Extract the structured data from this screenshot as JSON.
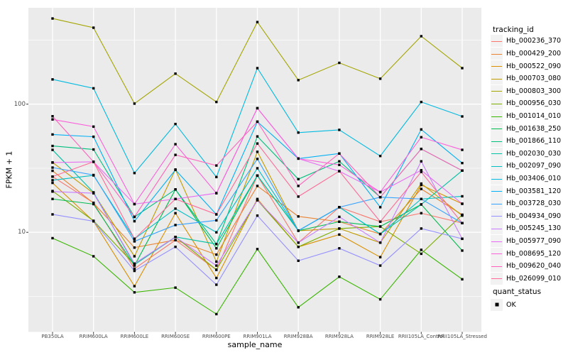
{
  "figure": {
    "y_axis_title": "FPKM + 1",
    "x_axis_title": "sample_name",
    "legend": {
      "tracking_title": "tracking_id",
      "quant_title": "quant_status",
      "quant_label": "OK"
    }
  },
  "chart_data": {
    "type": "line",
    "title": "",
    "xlabel": "sample_name",
    "ylabel": "FPKM + 1",
    "y_scale": "log10",
    "grid": true,
    "legend_position": "right",
    "panel_color": "#EBEBEB",
    "grid_color": "#FFFFFF",
    "point_color": "#000000",
    "point_shape": "square",
    "quant_status": "OK",
    "y_ticks": [
      {
        "label": "100",
        "value": 100
      },
      {
        "label": "10",
        "value": 10
      }
    ],
    "y_minor_values": [
      316.2,
      31.62,
      3.162
    ],
    "ylim_log": [
      1.7,
      570
    ],
    "categories": [
      "PB350LA",
      "RRIM600LA",
      "RRIM600LE",
      "RRIM600SE",
      "RRIM600PE",
      "RRIM901LA",
      "RRIM928BA",
      "RRIM928LA",
      "RRIM928LE",
      "RRII105LA_Control",
      "RRII105LA_Stressed"
    ],
    "series": [
      {
        "name": "Hb_000236_370",
        "color": "#F8766D",
        "values": [
          27.2,
          17.0,
          5.2,
          8.7,
          5.1,
          27.7,
          8.3,
          15.7,
          12.1,
          14.1,
          11.8
        ]
      },
      {
        "name": "Hb_000429_200",
        "color": "#EA8331",
        "values": [
          30.2,
          16.9,
          7.6,
          8.7,
          6.7,
          23.0,
          13.3,
          12.1,
          9.7,
          21.8,
          13.7
        ]
      },
      {
        "name": "Hb_000522_090",
        "color": "#D89000",
        "values": [
          24.3,
          12.2,
          3.8,
          14.1,
          4.4,
          18.2,
          7.7,
          9.6,
          6.4,
          23.4,
          16.7
        ]
      },
      {
        "name": "Hb_000703_080",
        "color": "#C09B00",
        "values": [
          35.1,
          20.2,
          6.5,
          30.9,
          5.9,
          42.5,
          10.3,
          10.7,
          8.3,
          24.0,
          13.5
        ]
      },
      {
        "name": "Hb_000803_300",
        "color": "#A3A500",
        "values": [
          466,
          395,
          101,
          173,
          104,
          437,
          154,
          210,
          158,
          339,
          191
        ]
      },
      {
        "name": "Hb_000956_030",
        "color": "#7CAE00",
        "values": [
          21.0,
          12.3,
          5.6,
          9.2,
          5.1,
          17.8,
          7.7,
          10.7,
          11.1,
          6.8,
          13.7
        ]
      },
      {
        "name": "Hb_001014_010",
        "color": "#39B600",
        "values": [
          9.0,
          6.5,
          3.4,
          3.7,
          2.3,
          7.4,
          2.6,
          4.5,
          3.0,
          7.3,
          4.3
        ]
      },
      {
        "name": "Hb_001638_250",
        "color": "#00BB4E",
        "values": [
          18.2,
          16.6,
          5.5,
          21.6,
          7.5,
          27.7,
          10.3,
          12.1,
          11.1,
          16.5,
          7.2
        ]
      },
      {
        "name": "Hb_001866_110",
        "color": "#00BF7D",
        "values": [
          47.2,
          44.3,
          13.2,
          21.6,
          8.1,
          56.0,
          26.0,
          35.8,
          18.8,
          44.7,
          30.3
        ]
      },
      {
        "name": "Hb_002030_030",
        "color": "#00C1A3",
        "values": [
          44.0,
          20.5,
          5.6,
          9.2,
          8.1,
          27.7,
          10.3,
          15.7,
          9.7,
          16.5,
          30.3
        ]
      },
      {
        "name": "Hb_002097_090",
        "color": "#00BFC4",
        "values": [
          25.5,
          27.8,
          8.9,
          15.3,
          10.0,
          31.6,
          10.3,
          15.7,
          9.7,
          18.2,
          19.1
        ]
      },
      {
        "name": "Hb_003406_010",
        "color": "#00BAE0",
        "values": [
          156,
          133,
          29.0,
          70.0,
          27.0,
          191,
          60.0,
          63.0,
          39.4,
          104,
          80.2
        ]
      },
      {
        "name": "Hb_003581_120",
        "color": "#00B0F6",
        "values": [
          58.0,
          55.7,
          12.2,
          30.7,
          13.8,
          73.0,
          37.6,
          41.2,
          15.7,
          63.5,
          34.7
        ]
      },
      {
        "name": "Hb_003728_030",
        "color": "#35A2FF",
        "values": [
          32.0,
          28.0,
          8.5,
          11.4,
          12.4,
          37.4,
          10.3,
          15.7,
          18.8,
          18.2,
          11.8
        ]
      },
      {
        "name": "Hb_004934_090",
        "color": "#9590FF",
        "values": [
          13.8,
          12.2,
          5.0,
          7.7,
          3.9,
          13.5,
          6.0,
          7.5,
          5.5,
          10.7,
          8.9
        ]
      },
      {
        "name": "Hb_005245_130",
        "color": "#C77CFF",
        "values": [
          20.8,
          20.2,
          5.7,
          9.2,
          5.5,
          17.8,
          8.3,
          13.2,
          8.3,
          35.8,
          8.9
        ]
      },
      {
        "name": "Hb_005977_090",
        "color": "#E76BF3",
        "values": [
          35.0,
          35.5,
          16.6,
          18.2,
          20.2,
          93.0,
          37.6,
          30.0,
          20.6,
          30.5,
          16.7
        ]
      },
      {
        "name": "Hb_008695_120",
        "color": "#FA62DB",
        "values": [
          76.0,
          66.8,
          16.6,
          48.7,
          20.2,
          93.0,
          37.6,
          33.6,
          20.6,
          55.2,
          44.0
        ]
      },
      {
        "name": "Hb_009620_040",
        "color": "#FF62BC",
        "values": [
          80.5,
          35.5,
          13.2,
          40.2,
          33.2,
          73.0,
          23.0,
          41.2,
          18.8,
          44.7,
          30.3
        ]
      },
      {
        "name": "Hb_026099_010",
        "color": "#FF6A98",
        "values": [
          27.2,
          35.5,
          8.9,
          18.2,
          13.8,
          49.3,
          19.0,
          30.0,
          12.1,
          29.6,
          11.8
        ]
      }
    ]
  }
}
